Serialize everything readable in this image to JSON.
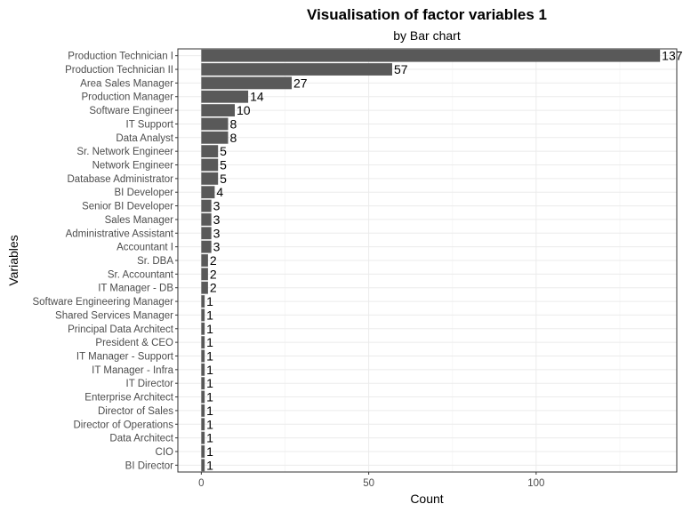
{
  "chart_data": {
    "type": "bar",
    "orientation": "horizontal",
    "title": "Visualisation of factor variables 1",
    "subtitle": "by Bar chart",
    "xlabel": "Count",
    "ylabel": "Variables",
    "xlim": [
      -7,
      142
    ],
    "xticks": [
      0,
      50,
      100
    ],
    "grid": true,
    "bar_color": "#595959",
    "categories": [
      "Production Technician I",
      "Production Technician II",
      "Area Sales Manager",
      "Production Manager",
      "Software Engineer",
      "IT Support",
      "Data Analyst",
      "Sr. Network Engineer",
      "Network Engineer",
      "Database Administrator",
      "BI Developer",
      "Senior BI Developer",
      "Sales Manager",
      "Administrative Assistant",
      "Accountant I",
      "Sr. DBA",
      "Sr. Accountant",
      "IT Manager - DB",
      "Software Engineering Manager",
      "Shared Services Manager",
      "Principal Data Architect",
      "President & CEO",
      "IT Manager - Support",
      "IT Manager - Infra",
      "IT Director",
      "Enterprise Architect",
      "Director of Sales",
      "Director of Operations",
      "Data Architect",
      "CIO",
      "BI Director"
    ],
    "values": [
      137,
      57,
      27,
      14,
      10,
      8,
      8,
      5,
      5,
      5,
      4,
      3,
      3,
      3,
      3,
      2,
      2,
      2,
      1,
      1,
      1,
      1,
      1,
      1,
      1,
      1,
      1,
      1,
      1,
      1,
      1
    ]
  }
}
